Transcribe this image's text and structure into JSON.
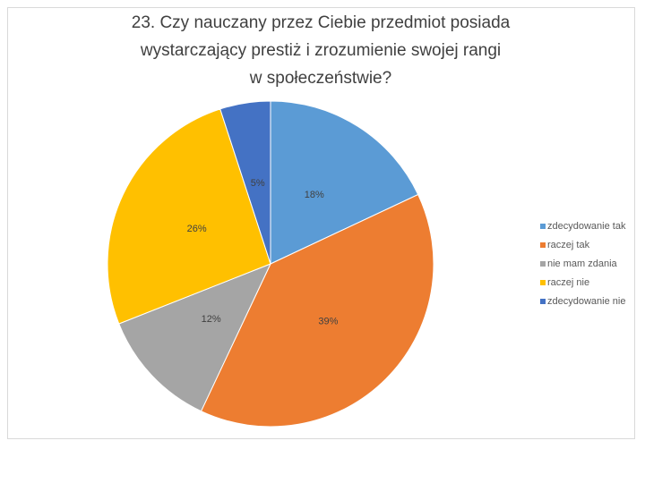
{
  "chart_data": {
    "type": "pie",
    "title_lines": [
      "23. Czy nauczany przez Ciebie przedmiot posiada",
      "wystarczający prestiż i zrozumienie swojej rangi",
      "w społeczeństwie?"
    ],
    "categories": [
      "zdecydowanie tak",
      "raczej tak",
      "nie mam zdania",
      "raczej nie",
      "zdecydowanie nie"
    ],
    "values": [
      18,
      39,
      12,
      26,
      5
    ],
    "value_labels": [
      "18%",
      "39%",
      "12%",
      "26%",
      "5%"
    ],
    "colors": [
      "#5b9bd5",
      "#ed7d31",
      "#a5a5a5",
      "#ffc000",
      "#4472c4"
    ],
    "legend": "right"
  }
}
